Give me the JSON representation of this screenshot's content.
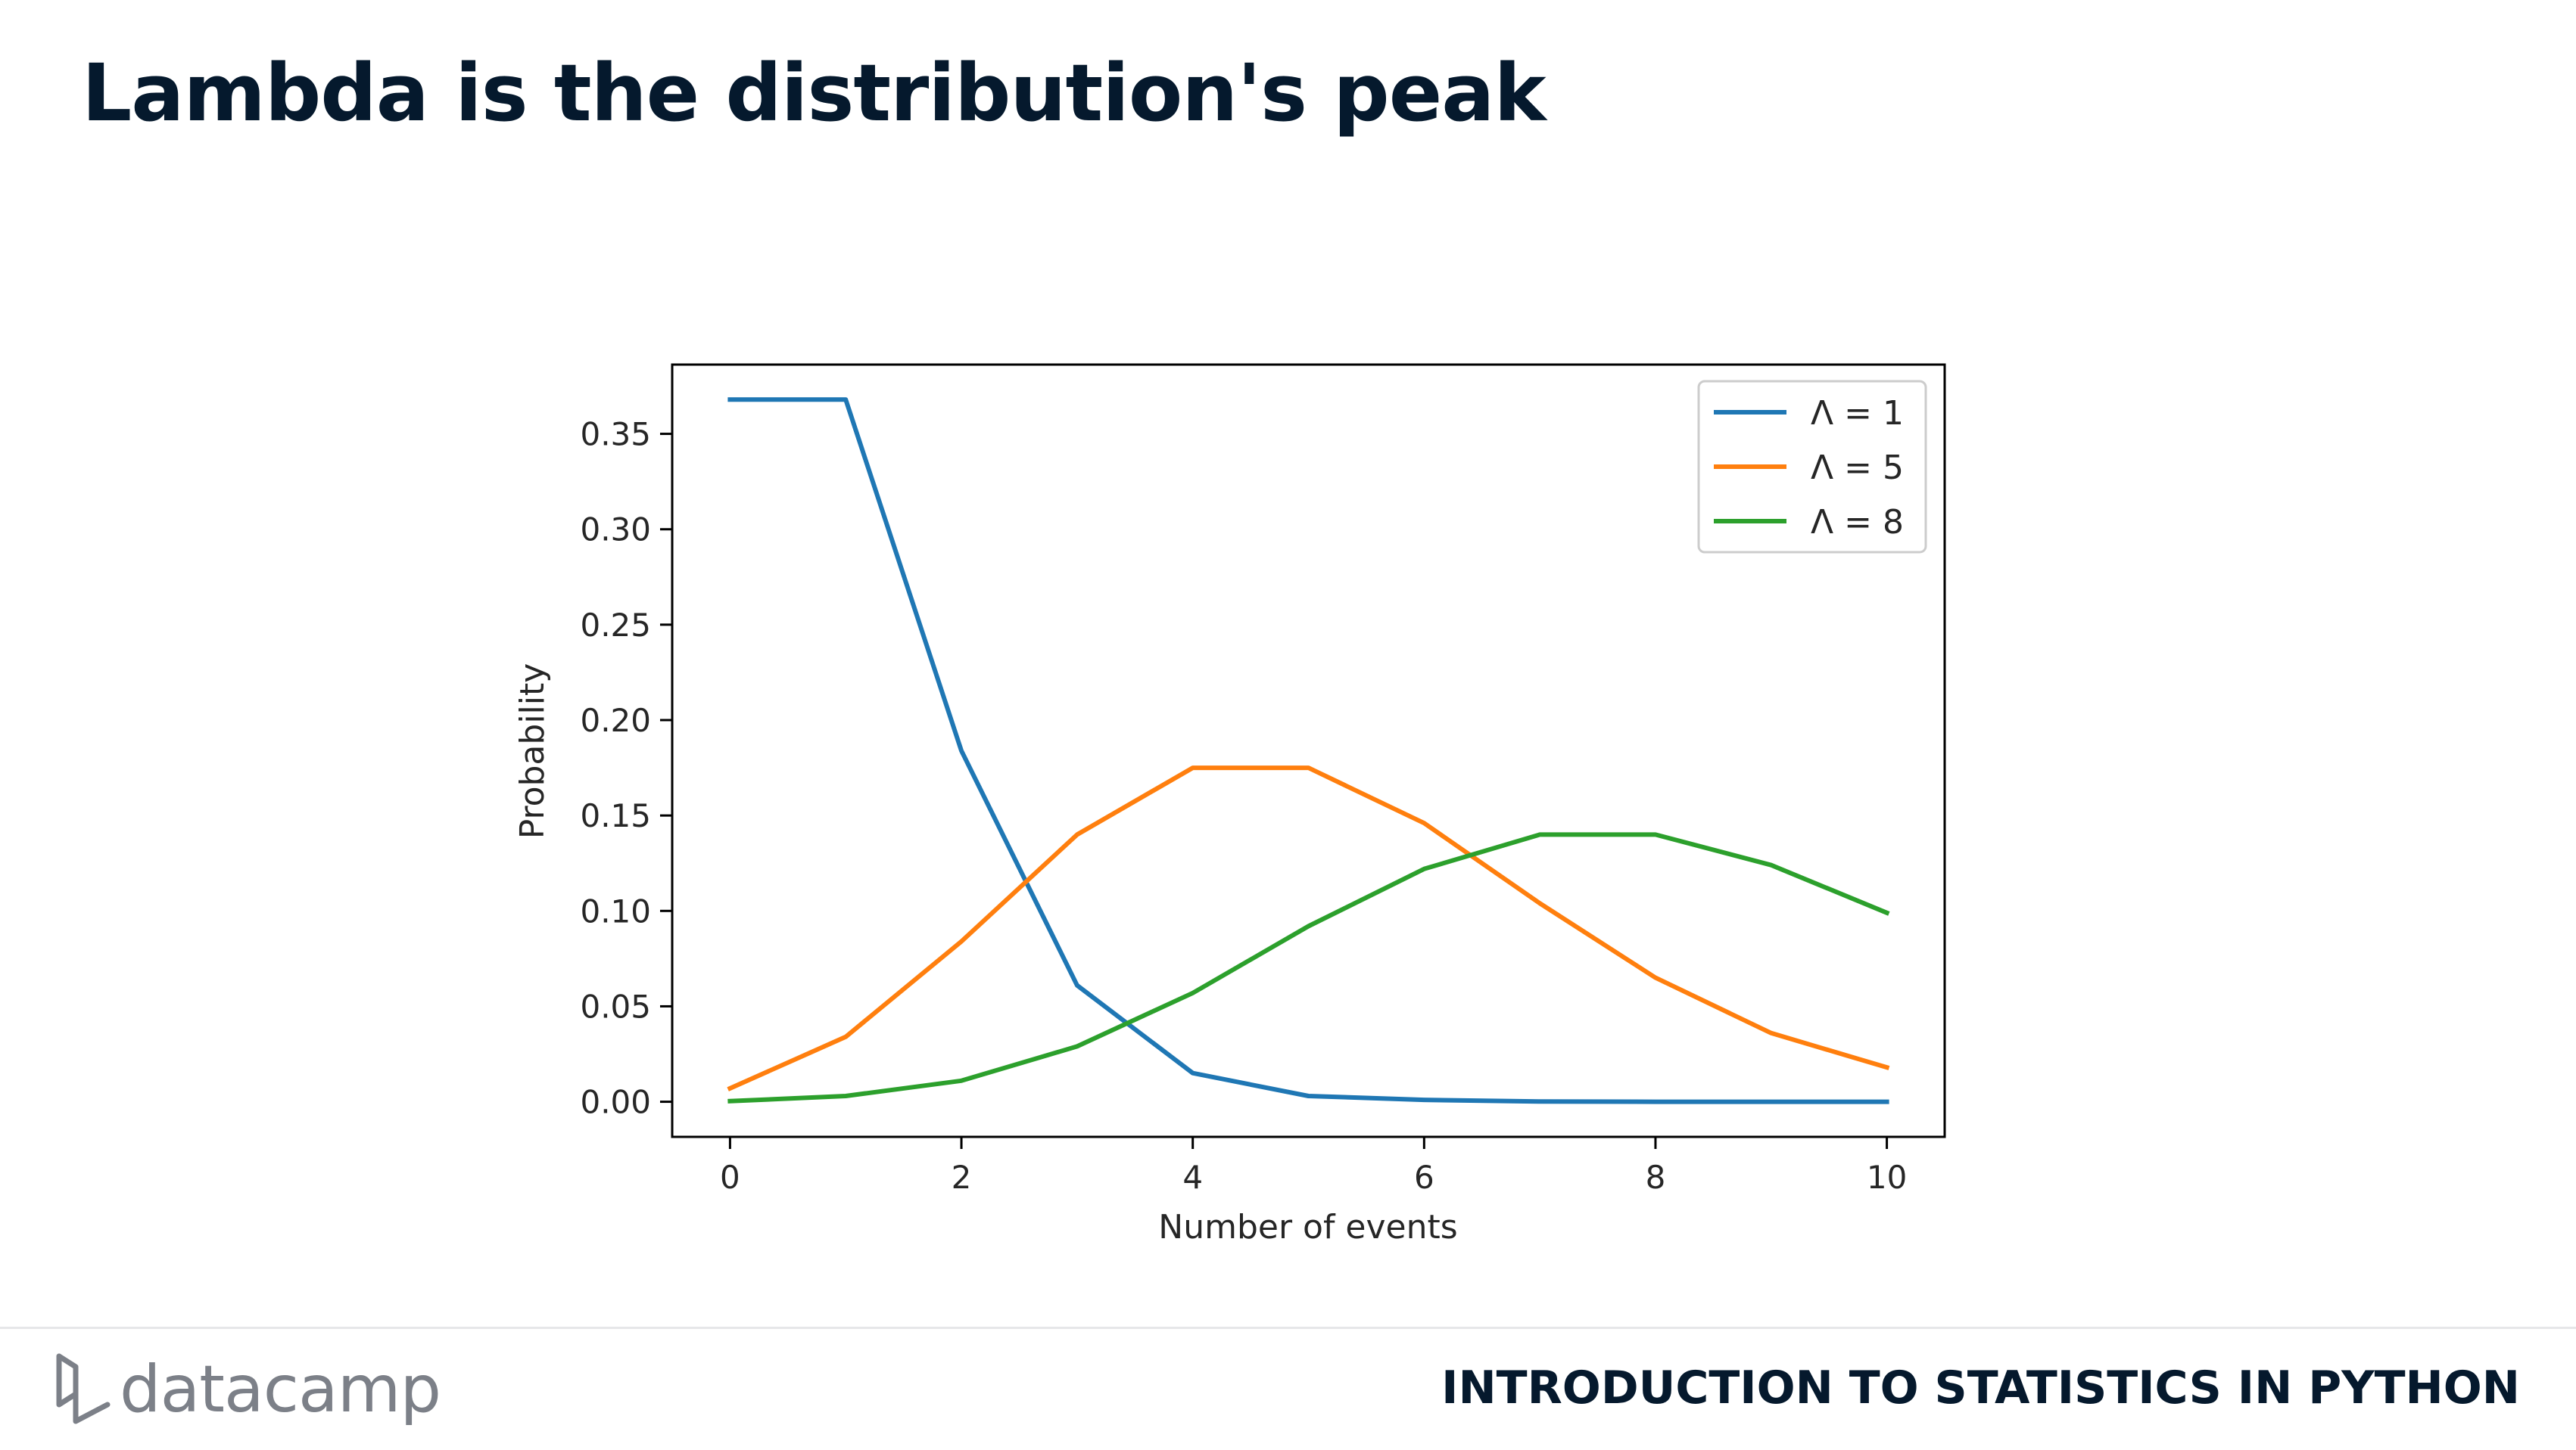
{
  "slide": {
    "title": "Lambda is the distribution's peak",
    "course": "INTRODUCTION TO STATISTICS IN PYTHON",
    "brand": "datacamp"
  },
  "colors": {
    "title": "#05192d",
    "brand_gray": "#7c8088",
    "series": [
      "#1f77b4",
      "#ff7f0e",
      "#2ca02c"
    ]
  },
  "icons": {
    "logo": "datacamp-logo-icon"
  },
  "chart_data": {
    "type": "line",
    "title": "",
    "xlabel": "Number of events",
    "ylabel": "Probability",
    "xlim": [
      -0.5,
      10.5
    ],
    "ylim": [
      -0.0184,
      0.3863
    ],
    "xticks": [
      0,
      2,
      4,
      6,
      8,
      10
    ],
    "xtick_labels": [
      "0",
      "2",
      "4",
      "6",
      "8",
      "10"
    ],
    "yticks": [
      0,
      0.05,
      0.1,
      0.15,
      0.2,
      0.25,
      0.3,
      0.35
    ],
    "ytick_labels": [
      "0.00",
      "0.05",
      "0.10",
      "0.15",
      "0.20",
      "0.25",
      "0.30",
      "0.35"
    ],
    "grid": false,
    "legend": "top-right",
    "x": [
      0,
      1,
      2,
      3,
      4,
      5,
      6,
      7,
      8,
      9,
      10
    ],
    "series": [
      {
        "name": "Λ = 1",
        "values": [
          0.368,
          0.368,
          0.184,
          0.061,
          0.015,
          0.003,
          0.001,
          0.0001,
          0.0,
          0.0,
          0.0
        ]
      },
      {
        "name": "Λ = 5",
        "values": [
          0.007,
          0.034,
          0.084,
          0.14,
          0.175,
          0.175,
          0.146,
          0.104,
          0.065,
          0.036,
          0.018
        ]
      },
      {
        "name": "Λ = 8",
        "values": [
          0.0003,
          0.003,
          0.011,
          0.029,
          0.057,
          0.092,
          0.122,
          0.14,
          0.14,
          0.124,
          0.099
        ]
      }
    ]
  }
}
